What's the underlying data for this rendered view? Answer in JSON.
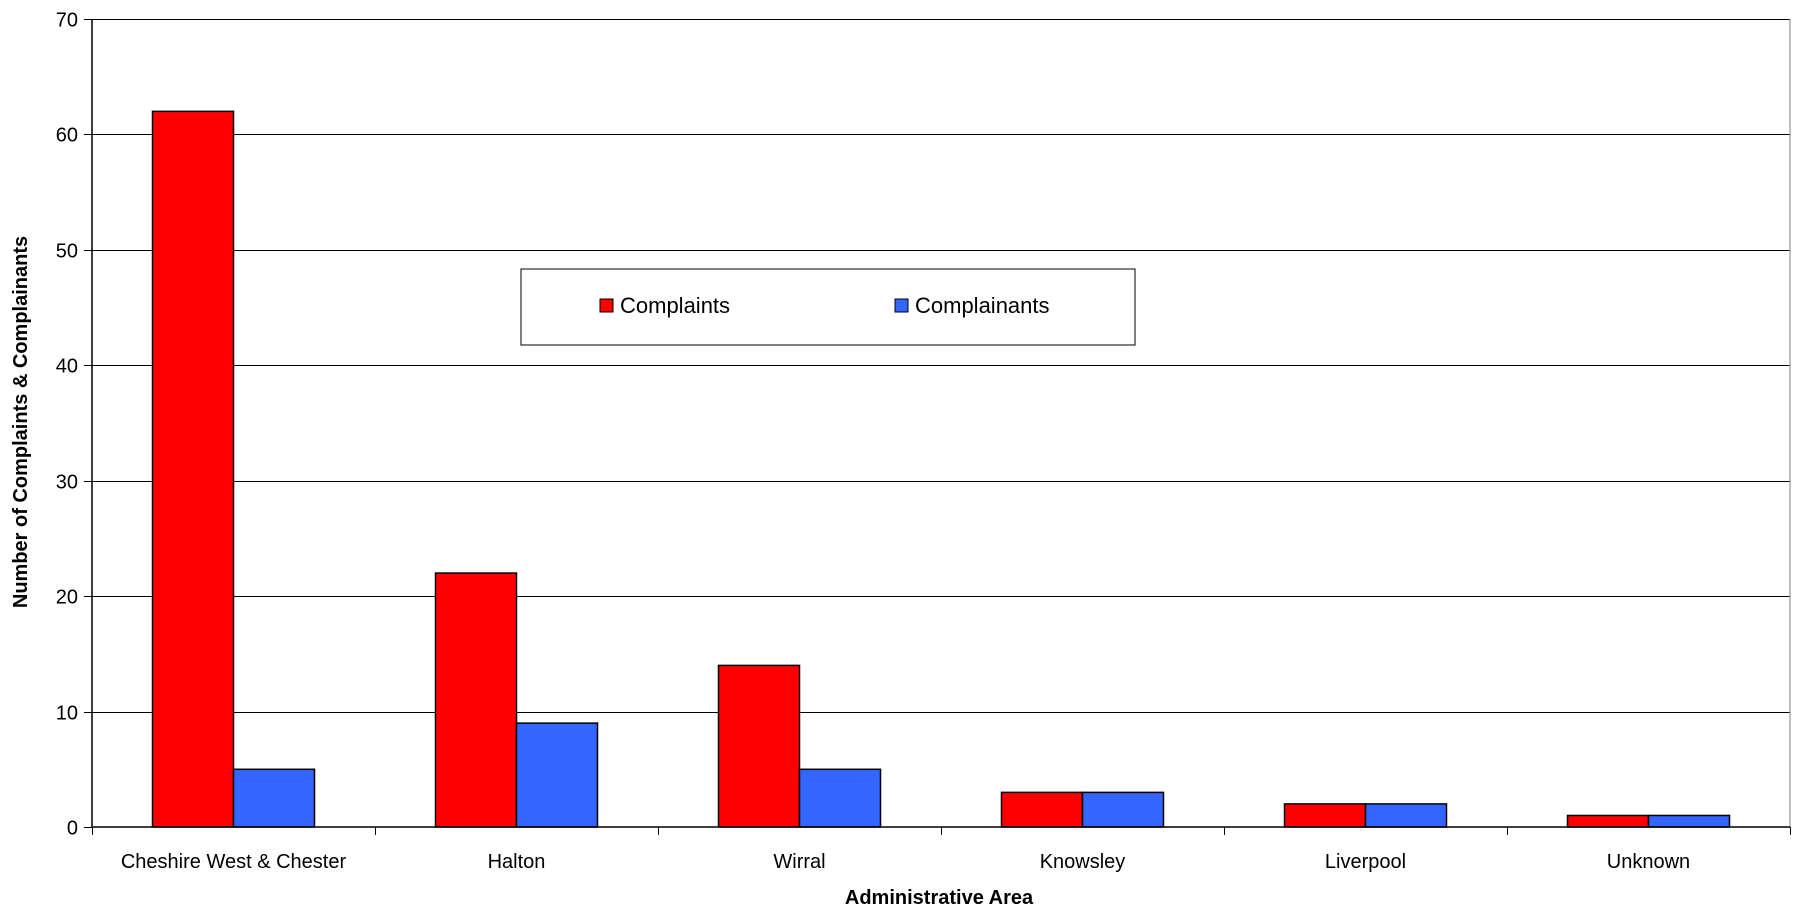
{
  "chart_data": {
    "type": "bar",
    "categories": [
      "Cheshire West & Chester",
      "Halton",
      "Wirral",
      "Knowsley",
      "Liverpool",
      "Unknown"
    ],
    "series": [
      {
        "name": "Complaints",
        "values": [
          62,
          22,
          14,
          3,
          2,
          1
        ],
        "color": "#ff0000"
      },
      {
        "name": "Complainants",
        "values": [
          5,
          9,
          5,
          3,
          2,
          1
        ],
        "color": "#3366ff"
      }
    ],
    "title": "",
    "xlabel": "Administrative Area",
    "ylabel": "Number of Complaints & Complainants",
    "ylim": [
      0,
      70
    ],
    "yticks": [
      0,
      10,
      20,
      30,
      40,
      50,
      60,
      70
    ],
    "grid": true,
    "legend": "inside-top-center"
  }
}
